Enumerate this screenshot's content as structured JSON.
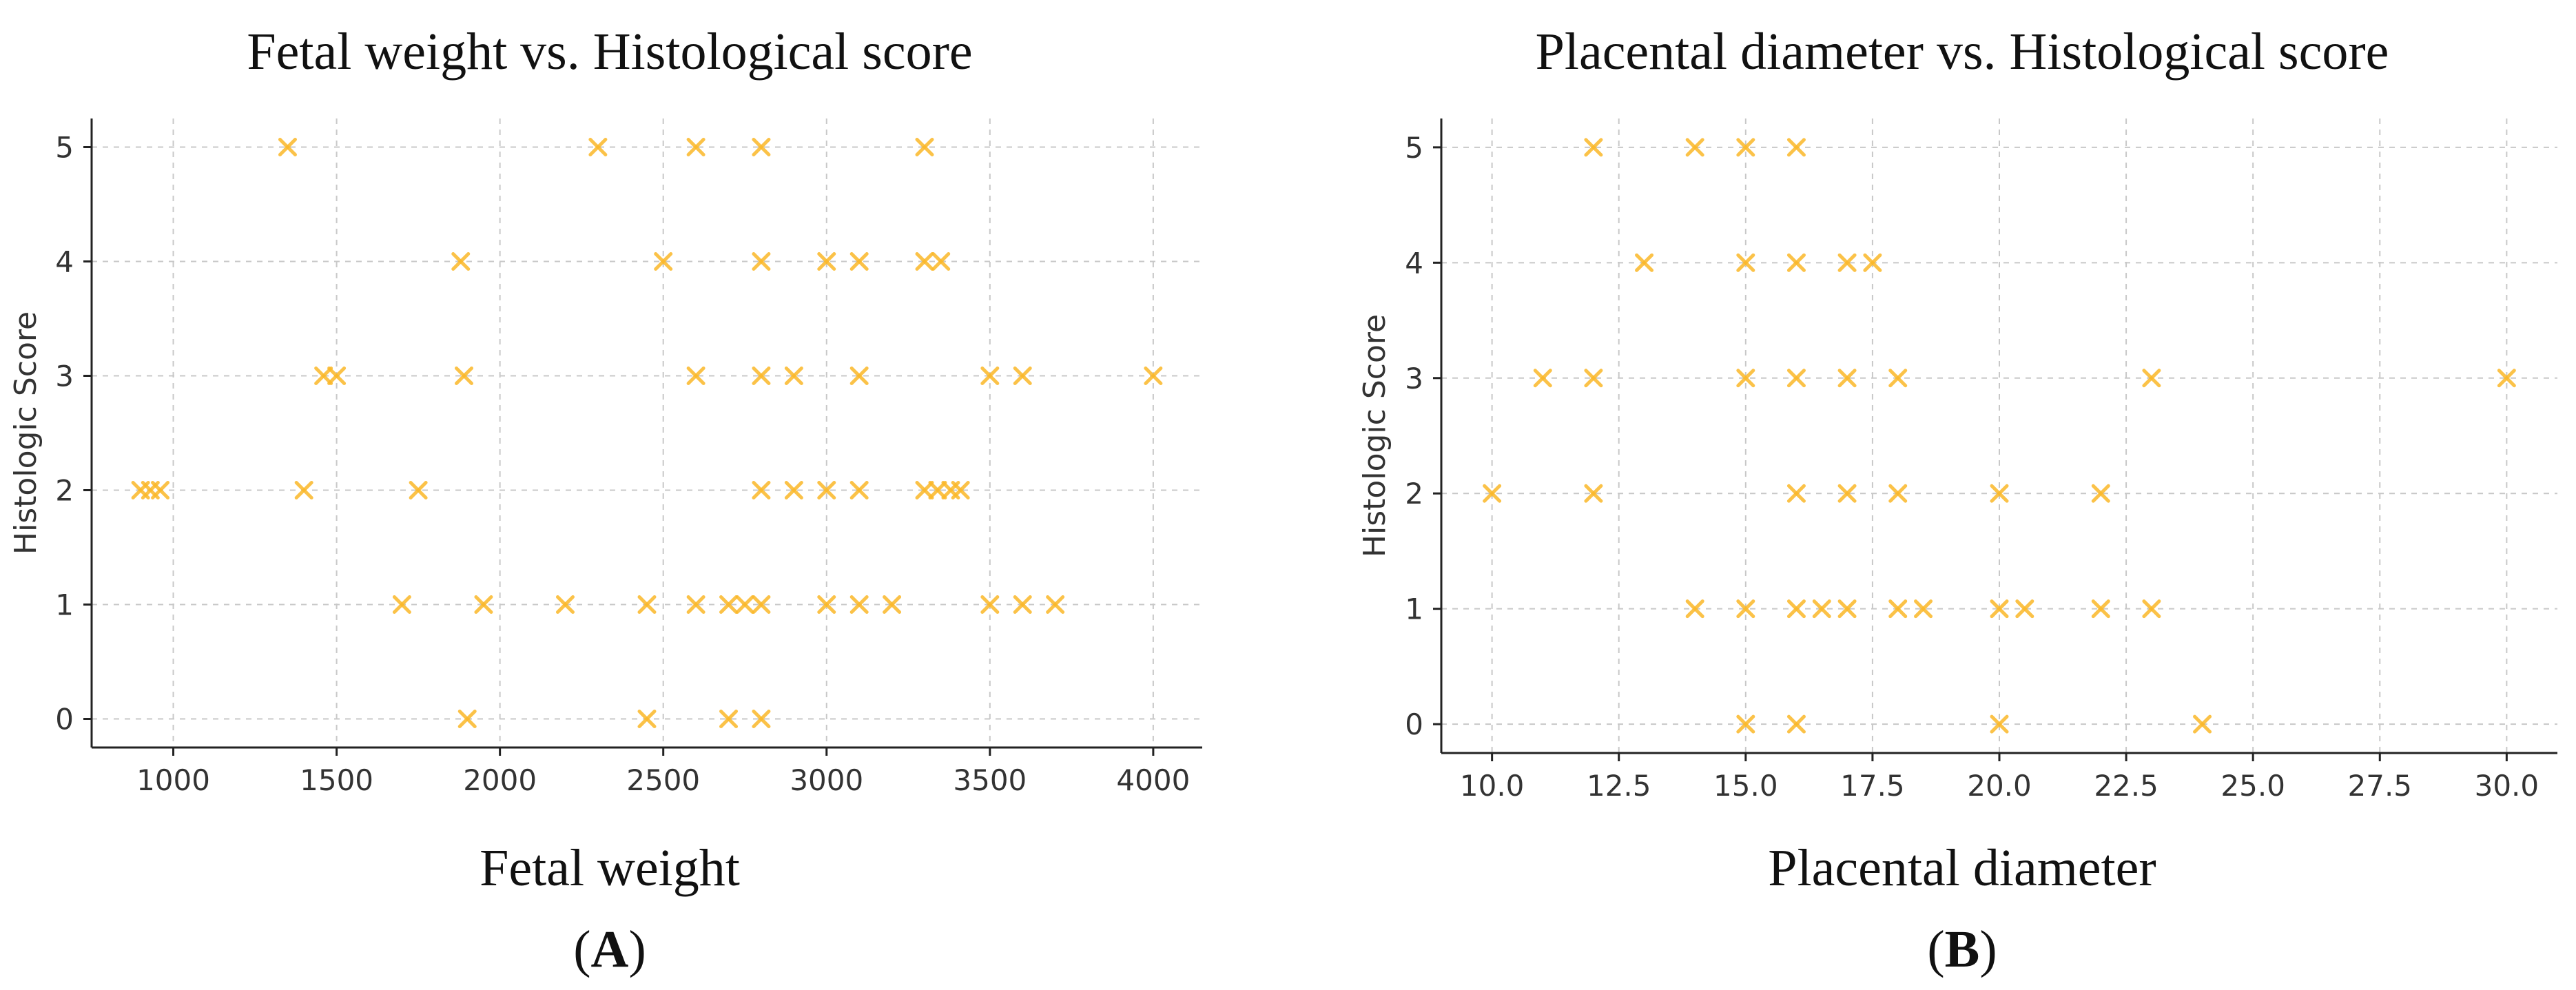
{
  "figure": {
    "panels": [
      {
        "title": "Fetal weight vs. Histological score",
        "xlabel": "Fetal weight",
        "panel_label": "A",
        "open_paren": "(",
        "close_paren": ")"
      },
      {
        "title": "Placental diameter vs. Histological score",
        "xlabel": "Placental diameter",
        "panel_label": "B",
        "open_paren": "(",
        "close_paren": ")"
      }
    ]
  },
  "chart_data": [
    {
      "type": "scatter",
      "title": "Fetal weight vs. Histological score",
      "xlabel": "Fetal weight",
      "ylabel": "Histologic Score",
      "xlim": [
        750,
        4150
      ],
      "ylim": [
        -0.25,
        5.25
      ],
      "xticks": [
        1000,
        1500,
        2000,
        2500,
        3000,
        3500,
        4000
      ],
      "xtick_labels": [
        "1000",
        "1500",
        "2000",
        "2500",
        "3000",
        "3500",
        "4000"
      ],
      "yticks": [
        0,
        1,
        2,
        3,
        4,
        5
      ],
      "ytick_labels": [
        "0",
        "1",
        "2",
        "3",
        "4",
        "5"
      ],
      "grid": true,
      "marker": "x",
      "color": "#fbb829",
      "points": [
        [
          1350,
          5
        ],
        [
          2300,
          5
        ],
        [
          2600,
          5
        ],
        [
          2800,
          5
        ],
        [
          3300,
          5
        ],
        [
          1880,
          4
        ],
        [
          2500,
          4
        ],
        [
          2800,
          4
        ],
        [
          3000,
          4
        ],
        [
          3100,
          4
        ],
        [
          3300,
          4
        ],
        [
          3350,
          4
        ],
        [
          1460,
          3
        ],
        [
          1500,
          3
        ],
        [
          1890,
          3
        ],
        [
          2600,
          3
        ],
        [
          2800,
          3
        ],
        [
          2900,
          3
        ],
        [
          3100,
          3
        ],
        [
          3500,
          3
        ],
        [
          3600,
          3
        ],
        [
          4000,
          3
        ],
        [
          900,
          2
        ],
        [
          930,
          2
        ],
        [
          960,
          2
        ],
        [
          1400,
          2
        ],
        [
          1750,
          2
        ],
        [
          2800,
          2
        ],
        [
          2900,
          2
        ],
        [
          3000,
          2
        ],
        [
          3100,
          2
        ],
        [
          3300,
          2
        ],
        [
          3340,
          2
        ],
        [
          3380,
          2
        ],
        [
          3410,
          2
        ],
        [
          1700,
          1
        ],
        [
          1950,
          1
        ],
        [
          2200,
          1
        ],
        [
          2450,
          1
        ],
        [
          2600,
          1
        ],
        [
          2700,
          1
        ],
        [
          2750,
          1
        ],
        [
          2800,
          1
        ],
        [
          3000,
          1
        ],
        [
          3100,
          1
        ],
        [
          3200,
          1
        ],
        [
          3500,
          1
        ],
        [
          3600,
          1
        ],
        [
          3700,
          1
        ],
        [
          1900,
          0
        ],
        [
          2450,
          0
        ],
        [
          2700,
          0
        ],
        [
          2800,
          0
        ]
      ]
    },
    {
      "type": "scatter",
      "title": "Placental diameter vs. Histological score",
      "xlabel": "Placental diameter",
      "ylabel": "Histologic Score",
      "xlim": [
        9.0,
        31.0
      ],
      "ylim": [
        -0.25,
        5.25
      ],
      "xticks": [
        10.0,
        12.5,
        15.0,
        17.5,
        20.0,
        22.5,
        25.0,
        27.5,
        30.0
      ],
      "xtick_labels": [
        "10.0",
        "12.5",
        "15.0",
        "17.5",
        "20.0",
        "22.5",
        "25.0",
        "27.5",
        "30.0"
      ],
      "yticks": [
        0,
        1,
        2,
        3,
        4,
        5
      ],
      "ytick_labels": [
        "0",
        "1",
        "2",
        "3",
        "4",
        "5"
      ],
      "grid": true,
      "marker": "x",
      "color": "#fbb829",
      "points": [
        [
          12,
          5
        ],
        [
          14,
          5
        ],
        [
          15,
          5
        ],
        [
          16,
          5
        ],
        [
          13,
          4
        ],
        [
          15,
          4
        ],
        [
          16,
          4
        ],
        [
          17,
          4
        ],
        [
          17.5,
          4
        ],
        [
          11,
          3
        ],
        [
          12,
          3
        ],
        [
          15,
          3
        ],
        [
          16,
          3
        ],
        [
          17,
          3
        ],
        [
          18,
          3
        ],
        [
          23,
          3
        ],
        [
          30,
          3
        ],
        [
          10,
          2
        ],
        [
          12,
          2
        ],
        [
          16,
          2
        ],
        [
          17,
          2
        ],
        [
          18,
          2
        ],
        [
          20,
          2
        ],
        [
          22,
          2
        ],
        [
          14,
          1
        ],
        [
          15,
          1
        ],
        [
          16,
          1
        ],
        [
          16.5,
          1
        ],
        [
          17,
          1
        ],
        [
          18,
          1
        ],
        [
          18.5,
          1
        ],
        [
          20,
          1
        ],
        [
          20.5,
          1
        ],
        [
          22,
          1
        ],
        [
          23,
          1
        ],
        [
          15,
          0
        ],
        [
          16,
          0
        ],
        [
          20,
          0
        ],
        [
          24,
          0
        ]
      ]
    }
  ]
}
